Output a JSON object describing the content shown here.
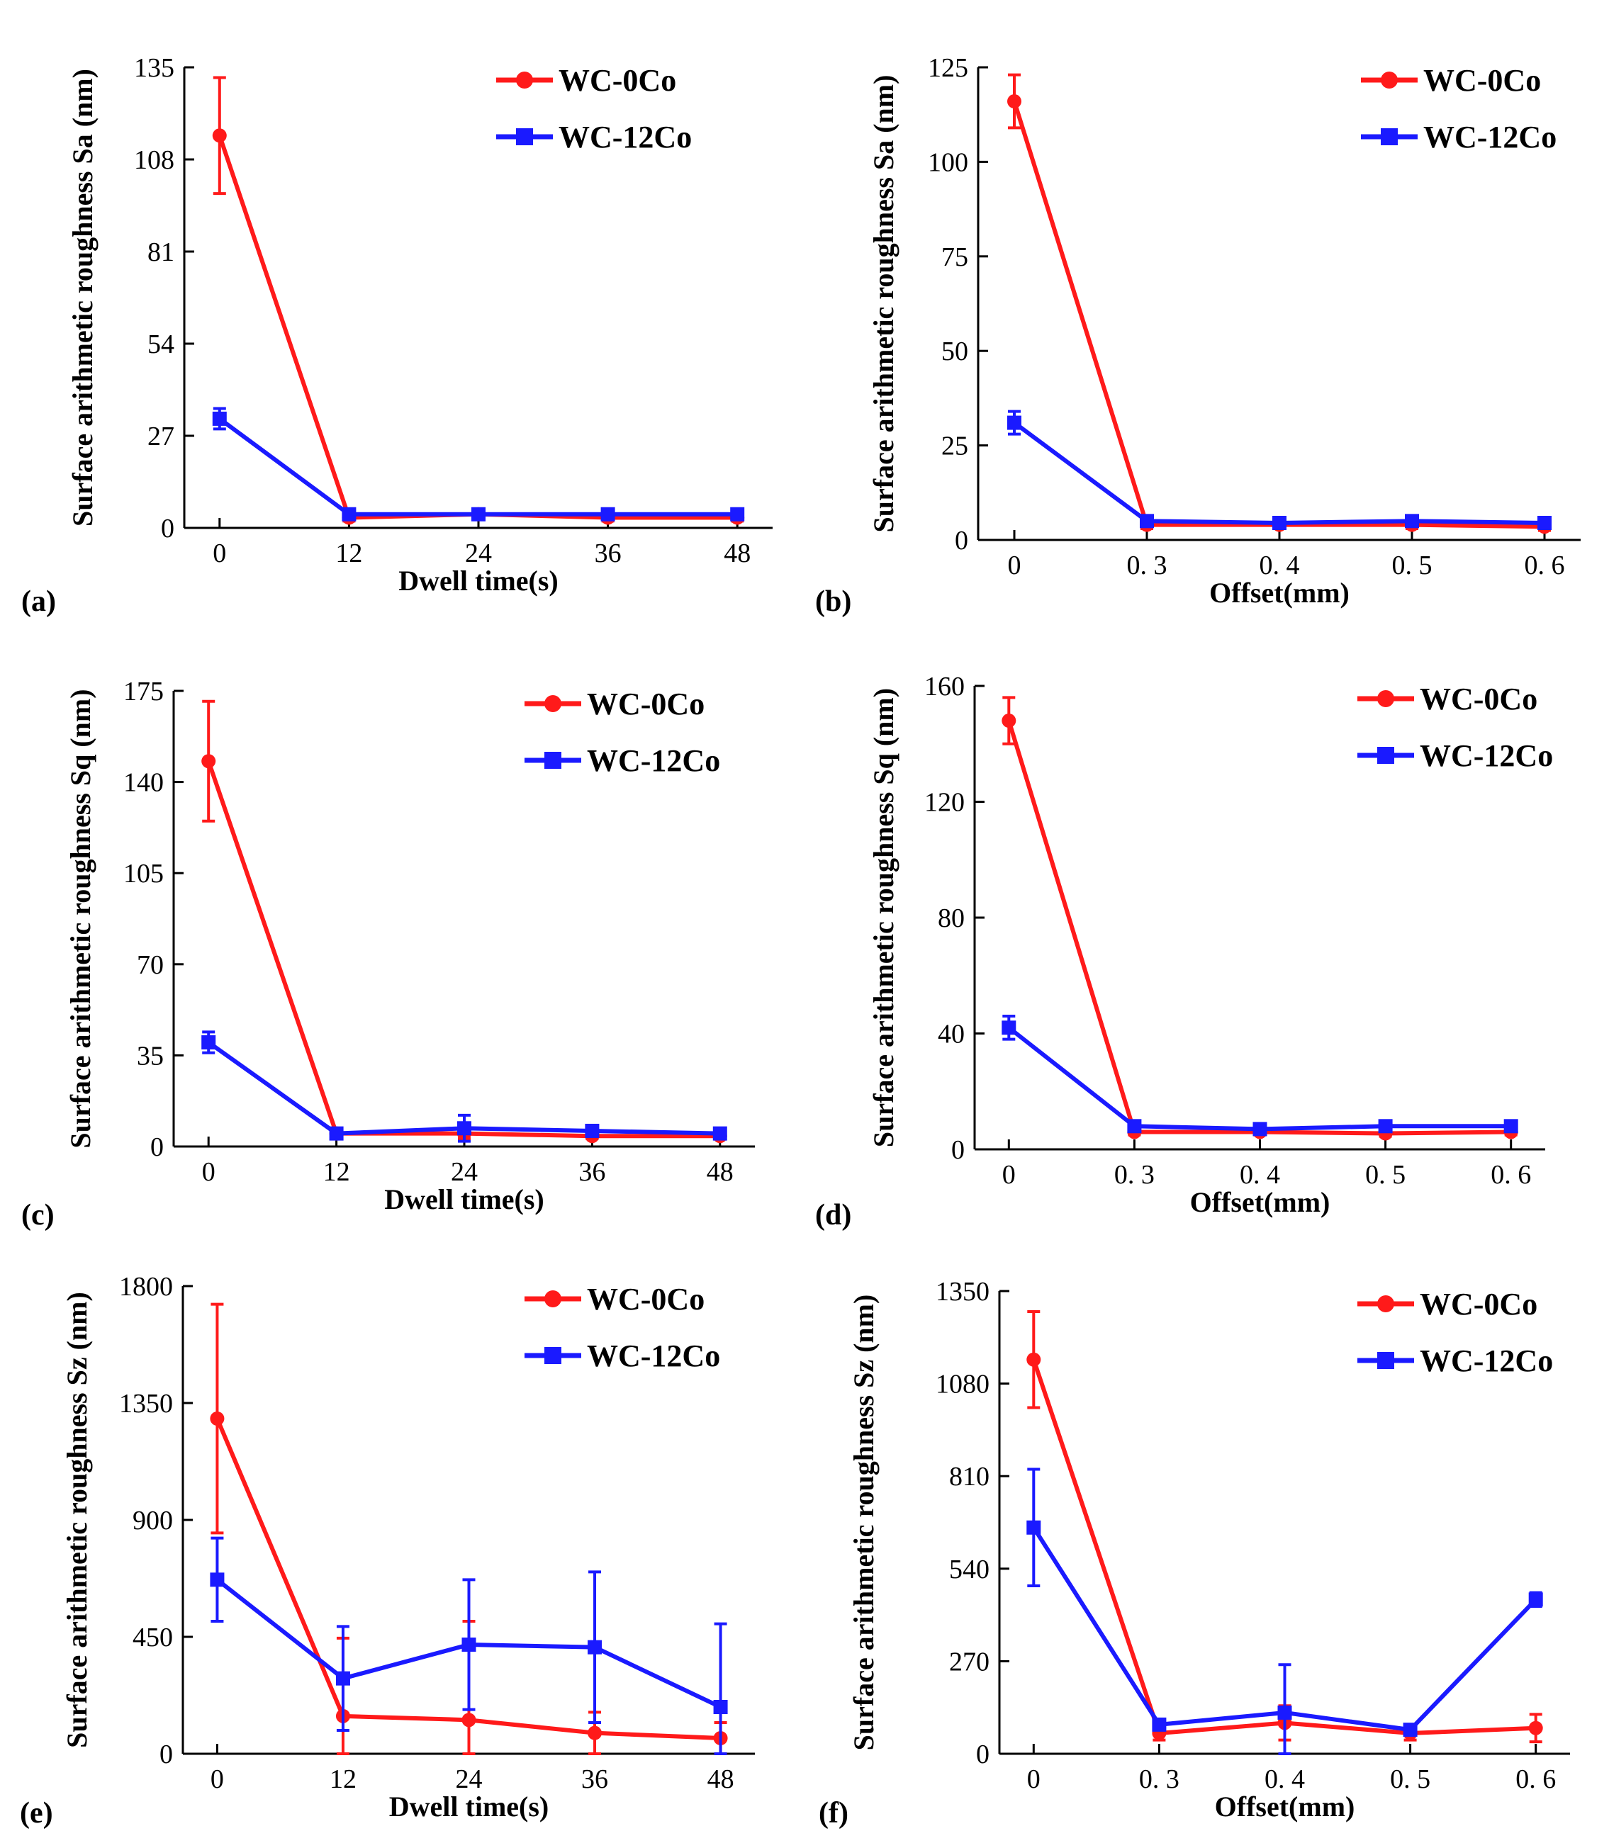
{
  "colors": {
    "red": "#ff1a1a",
    "blue": "#1a1aff",
    "axis": "#000000"
  },
  "legend": {
    "series1": "WC-0Co",
    "series2": "WC-12Co"
  },
  "chart_data": [
    {
      "panel_label": "(a)",
      "type": "line",
      "xlabel": "Dwell time(s)",
      "ylabel": "Surface arithmetic roughness  Sa (nm)",
      "categories": [
        "0",
        "12",
        "24",
        "36",
        "48"
      ],
      "yticks": [
        "0",
        "27",
        "54",
        "81",
        "108",
        "135"
      ],
      "ylim": [
        0,
        135
      ],
      "series": [
        {
          "name": "WC-0Co",
          "values": [
            115,
            3,
            4,
            3,
            3
          ],
          "errors": [
            17,
            1,
            1.5,
            1,
            1
          ]
        },
        {
          "name": "WC-12Co",
          "values": [
            32,
            4,
            4,
            4,
            4
          ],
          "errors": [
            3,
            1,
            1,
            1,
            1
          ]
        }
      ]
    },
    {
      "panel_label": "(b)",
      "type": "line",
      "xlabel": "Offset(mm)",
      "ylabel": "Surface arithmetic roughness  Sa (nm)",
      "categories": [
        "0",
        "0. 3",
        "0. 4",
        "0. 5",
        "0. 6"
      ],
      "yticks": [
        "0",
        "25",
        "50",
        "75",
        "100",
        "125"
      ],
      "ylim": [
        0,
        125
      ],
      "series": [
        {
          "name": "WC-0Co",
          "values": [
            116,
            4,
            4,
            4,
            3.5
          ],
          "errors": [
            7,
            1,
            1,
            1,
            1
          ]
        },
        {
          "name": "WC-12Co",
          "values": [
            31,
            5,
            4.5,
            5,
            4.5
          ],
          "errors": [
            3,
            1,
            1,
            1,
            1
          ]
        }
      ]
    },
    {
      "panel_label": "(c)",
      "type": "line",
      "xlabel": "Dwell time(s)",
      "ylabel": "Surface arithmetic roughness  Sq (nm)",
      "categories": [
        "0",
        "12",
        "24",
        "36",
        "48"
      ],
      "yticks": [
        "0",
        "35",
        "70",
        "105",
        "140",
        "175"
      ],
      "ylim": [
        0,
        175
      ],
      "series": [
        {
          "name": "WC-0Co",
          "values": [
            148,
            5,
            5,
            4,
            4
          ],
          "errors": [
            23,
            1,
            2,
            1,
            1
          ]
        },
        {
          "name": "WC-12Co",
          "values": [
            40,
            5,
            7,
            6,
            5
          ],
          "errors": [
            4,
            1,
            5,
            2,
            2
          ]
        }
      ]
    },
    {
      "panel_label": "(d)",
      "type": "line",
      "xlabel": "Offset(mm)",
      "ylabel": "Surface arithmetic roughness  Sq (nm)",
      "categories": [
        "0",
        "0. 3",
        "0. 4",
        "0. 5",
        "0. 6"
      ],
      "yticks": [
        "0",
        "40",
        "80",
        "120",
        "160"
      ],
      "ylim": [
        0,
        160
      ],
      "series": [
        {
          "name": "WC-0Co",
          "values": [
            148,
            6,
            6,
            5.5,
            6
          ],
          "errors": [
            8,
            1,
            1,
            1,
            1
          ]
        },
        {
          "name": "WC-12Co",
          "values": [
            42,
            8,
            7,
            8,
            8
          ],
          "errors": [
            4,
            1,
            1,
            1,
            1
          ]
        }
      ]
    },
    {
      "panel_label": "(e)",
      "type": "line",
      "xlabel": "Dwell time(s)",
      "ylabel": "Surface arithmetic roughness  Sz (nm)",
      "categories": [
        "0",
        "12",
        "24",
        "36",
        "48"
      ],
      "yticks": [
        "0",
        "450",
        "900",
        "1350",
        "1800"
      ],
      "ylim": [
        0,
        1800
      ],
      "series": [
        {
          "name": "WC-0Co",
          "values": [
            1290,
            145,
            130,
            80,
            60
          ],
          "errors": [
            440,
            300,
            380,
            80,
            60
          ]
        },
        {
          "name": "WC-12Co",
          "values": [
            670,
            290,
            420,
            410,
            180
          ],
          "errors": [
            160,
            200,
            250,
            290,
            320
          ]
        }
      ]
    },
    {
      "panel_label": "(f)",
      "type": "line",
      "xlabel": "Offset(mm)",
      "ylabel": "Surface arithmetic roughness  Sz (nm)",
      "categories": [
        "0",
        "0. 3",
        "0. 4",
        "0. 5",
        "0. 6"
      ],
      "yticks": [
        "0",
        "270",
        "540",
        "810",
        "1080",
        "1350"
      ],
      "ylim": [
        0,
        1350
      ],
      "series": [
        {
          "name": "WC-0Co",
          "values": [
            1150,
            60,
            90,
            60,
            75
          ],
          "errors": [
            140,
            20,
            50,
            20,
            40
          ]
        },
        {
          "name": "WC-12Co",
          "values": [
            660,
            85,
            120,
            70,
            450
          ],
          "errors": [
            170,
            15,
            140,
            15,
            20
          ]
        }
      ]
    }
  ]
}
